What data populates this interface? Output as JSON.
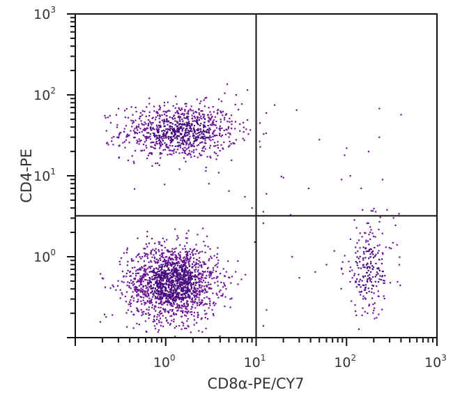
{
  "chart_data": {
    "type": "scatter",
    "title": "",
    "xlabel": "CD8α-PE/CY7",
    "ylabel": "CD4-PE",
    "xscale": "log",
    "yscale": "log",
    "xlim": [
      0.1,
      1000
    ],
    "ylim": [
      0.1,
      1000
    ],
    "grid": false,
    "legend": null,
    "x_ticks": [
      {
        "value": 1,
        "base": "10",
        "exp": "0"
      },
      {
        "value": 10,
        "base": "10",
        "exp": "1"
      },
      {
        "value": 100,
        "base": "10",
        "exp": "2"
      },
      {
        "value": 1000,
        "base": "10",
        "exp": "3"
      }
    ],
    "y_ticks": [
      {
        "value": 1,
        "base": "10",
        "exp": "0"
      },
      {
        "value": 10,
        "base": "10",
        "exp": "1"
      },
      {
        "value": 100,
        "base": "10",
        "exp": "2"
      },
      {
        "value": 1000,
        "base": "10",
        "exp": "3"
      }
    ],
    "quadrant_gates": {
      "x": 10,
      "y": 3.2
    },
    "point_color": "#6b1596",
    "dense_color": "#4a0a80",
    "populations": [
      {
        "name": "CD4+ CD8-",
        "quadrant": "upper-left",
        "center_log": [
          0.15,
          1.55
        ],
        "spread_log": [
          0.32,
          0.17
        ],
        "count": 900,
        "approx_center": [
          1.4,
          35
        ]
      },
      {
        "name": "CD4- CD8-",
        "quadrant": "lower-left",
        "center_log": [
          0.08,
          -0.32
        ],
        "spread_log": [
          0.25,
          0.23
        ],
        "count": 1700,
        "approx_center": [
          1.2,
          0.48
        ]
      },
      {
        "name": "CD4- CD8+",
        "quadrant": "lower-right",
        "center_log": [
          2.25,
          -0.15
        ],
        "spread_log": [
          0.14,
          0.28
        ],
        "count": 230,
        "approx_center": [
          180,
          0.7
        ]
      }
    ],
    "outliers": [
      [
        16,
        75
      ],
      [
        28,
        65
      ],
      [
        230,
        68
      ],
      [
        400,
        57
      ],
      [
        11,
        45
      ],
      [
        50,
        28
      ],
      [
        95,
        18
      ],
      [
        100,
        22
      ],
      [
        230,
        30
      ],
      [
        175,
        20
      ],
      [
        110,
        10
      ],
      [
        20,
        9.5
      ],
      [
        13,
        6
      ],
      [
        38,
        7
      ],
      [
        19,
        9.8
      ],
      [
        88,
        9
      ],
      [
        250,
        9
      ],
      [
        145,
        7
      ],
      [
        280,
        3.8
      ],
      [
        12,
        3.6
      ],
      [
        24,
        3.3
      ],
      [
        150,
        3.8
      ],
      [
        210,
        3.6
      ],
      [
        380,
        3.4
      ],
      [
        12,
        2.6
      ],
      [
        25,
        1.0
      ],
      [
        60,
        0.8
      ],
      [
        30,
        0.55
      ],
      [
        13,
        0.22
      ],
      [
        12,
        0.14
      ],
      [
        45,
        0.65
      ],
      [
        8,
        115
      ],
      [
        6,
        100
      ],
      [
        4.5,
        105
      ],
      [
        9,
        4
      ],
      [
        7.5,
        5.5
      ],
      [
        5,
        6.5
      ],
      [
        3,
        8
      ]
    ]
  }
}
